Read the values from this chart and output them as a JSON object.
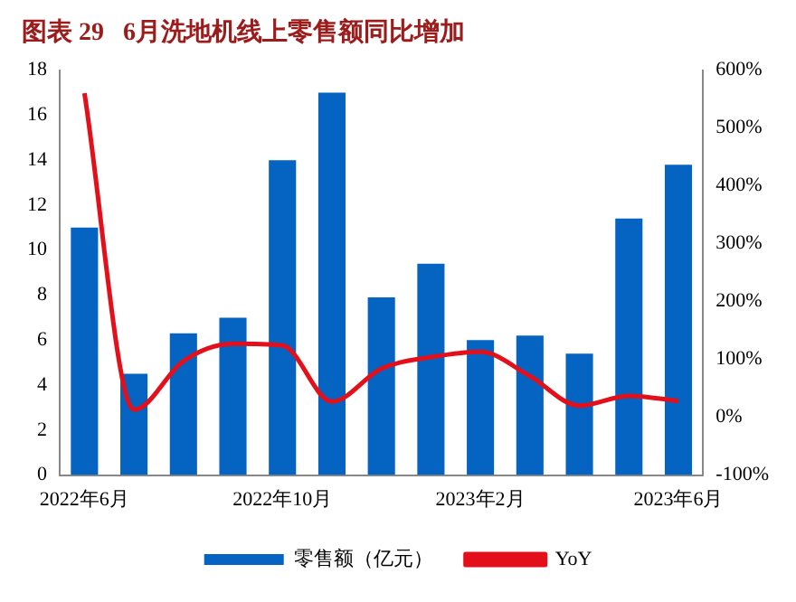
{
  "chart_data": {
    "type": "bar",
    "title": "图表 29   6月洗地机线上零售额同比增加",
    "categories": [
      "2022年6月",
      null,
      null,
      null,
      "2022年10月",
      null,
      null,
      null,
      "2023年2月",
      null,
      null,
      null,
      "2023年6月"
    ],
    "series": [
      {
        "name": "零售额（亿元）",
        "color": "#0563c1",
        "values": [
          11.0,
          4.5,
          6.3,
          7.0,
          14.0,
          17.0,
          7.9,
          9.4,
          6.0,
          6.2,
          5.4,
          11.4,
          13.8
        ]
      },
      {
        "name": "YoY",
        "type": "line",
        "axis": "y2",
        "color": "#e3101b",
        "marker": "none",
        "values": [
          560,
          13,
          97,
          127,
          124,
          27,
          84,
          104,
          113,
          71,
          20,
          37,
          28
        ]
      }
    ],
    "ylim": [
      0,
      18
    ],
    "yticks": [
      0,
      2,
      4,
      6,
      8,
      10,
      12,
      14,
      16,
      18
    ],
    "y2lim": [
      -100,
      600
    ],
    "y2ticks": [
      {
        "value": -100,
        "label": "-100%"
      },
      {
        "value": 0,
        "label": "0%"
      },
      {
        "value": 100,
        "label": "100%"
      },
      {
        "value": 200,
        "label": "200%"
      },
      {
        "value": 300,
        "label": "300%"
      },
      {
        "value": 400,
        "label": "400%"
      },
      {
        "value": 500,
        "label": "500%"
      },
      {
        "value": 600,
        "label": "600%"
      }
    ],
    "grid": false,
    "legend": "bottom"
  }
}
